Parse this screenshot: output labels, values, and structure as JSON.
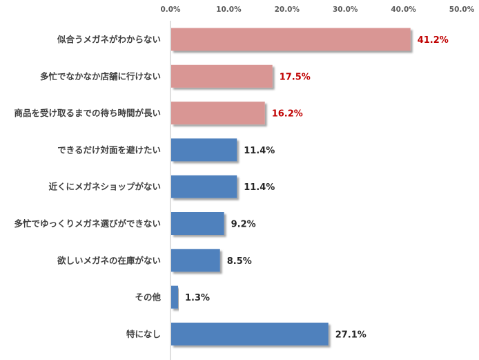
{
  "chart_data": {
    "type": "bar",
    "orientation": "horizontal",
    "unit": "%",
    "xlim": [
      0,
      50
    ],
    "ticks": [
      "0.0%",
      "10.0%",
      "20.0%",
      "30.0%",
      "40.0%",
      "50.0%"
    ],
    "grid": false,
    "categories": [
      "似合うメガネがわからない",
      "多忙でなかなか店舗に行けない",
      "商品を受け取るまでの待ち時間が長い",
      "できるだけ対面を避けたい",
      "近くにメガネショップがない",
      "多忙でゆっくりメガネ選びができない",
      "欲しいメガネの在庫がない",
      "その他",
      "特になし"
    ],
    "values": [
      41.2,
      17.5,
      16.2,
      11.4,
      11.4,
      9.2,
      8.5,
      1.3,
      27.1
    ],
    "value_labels": [
      "41.2%",
      "17.5%",
      "16.2%",
      "11.4%",
      "11.4%",
      "9.2%",
      "8.5%",
      "1.3%",
      "27.1%"
    ],
    "highlight_count": 3,
    "colors": {
      "highlight_bar": "#d99694",
      "normal_bar": "#4f81bd",
      "highlight_label": "#c00000",
      "normal_label": "#262626",
      "axis": "#bfbfbf"
    }
  }
}
